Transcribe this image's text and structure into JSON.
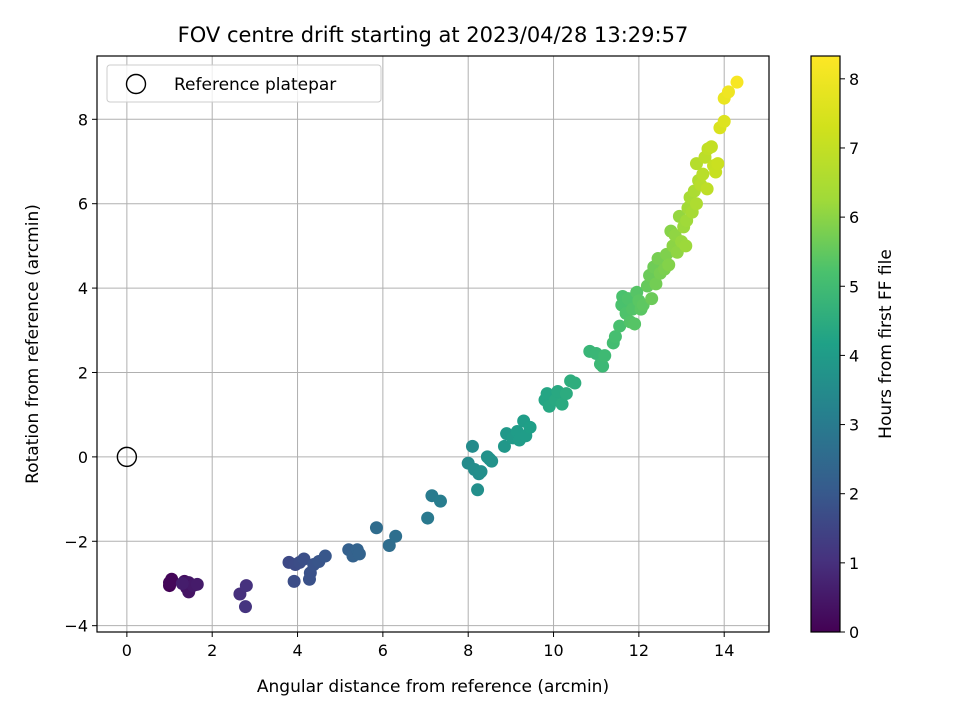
{
  "chart_data": {
    "type": "scatter",
    "title": "FOV centre drift starting at 2023/04/28 13:29:57",
    "xlabel": "Angular distance from reference (arcmin)",
    "ylabel": "Rotation from reference (arcmin)",
    "xlim": [
      -0.7,
      15.05
    ],
    "ylim": [
      -4.15,
      9.5
    ],
    "xticks": [
      0,
      2,
      4,
      6,
      8,
      10,
      12,
      14
    ],
    "yticks": [
      -4,
      -2,
      0,
      2,
      4,
      6,
      8
    ],
    "grid": true,
    "legend": {
      "placement": "top-left",
      "entries": [
        {
          "label": "Reference platepar",
          "marker": "open-circle"
        }
      ]
    },
    "reference_point": {
      "x": 0,
      "y": 0
    },
    "colorbar": {
      "label": "Hours from first FF file",
      "range": [
        0,
        8.33
      ],
      "ticks": [
        0,
        1,
        2,
        3,
        4,
        5,
        6,
        7,
        8
      ],
      "colormap": "viridis"
    },
    "series": [
      {
        "points": [
          [
            1.0,
            -3.05,
            0.05
          ],
          [
            1.05,
            -2.9,
            0.1
          ],
          [
            1.0,
            -2.98,
            0.12
          ],
          [
            1.35,
            -2.95,
            0.3
          ],
          [
            1.4,
            -3.1,
            0.35
          ],
          [
            1.45,
            -3.2,
            0.4
          ],
          [
            1.45,
            -2.98,
            0.45
          ],
          [
            1.55,
            -3.05,
            0.5
          ],
          [
            1.65,
            -3.02,
            0.55
          ],
          [
            1.3,
            -3.0,
            0.6
          ],
          [
            2.65,
            -3.25,
            1.0
          ],
          [
            2.8,
            -3.05,
            1.05
          ],
          [
            2.78,
            -3.55,
            1.1
          ],
          [
            3.8,
            -2.5,
            1.6
          ],
          [
            3.95,
            -2.55,
            1.65
          ],
          [
            4.05,
            -2.5,
            1.7
          ],
          [
            3.92,
            -2.95,
            1.7
          ],
          [
            4.15,
            -2.42,
            1.75
          ],
          [
            4.3,
            -2.75,
            1.8
          ],
          [
            4.28,
            -2.9,
            1.8
          ],
          [
            4.38,
            -2.55,
            1.85
          ],
          [
            4.5,
            -2.48,
            1.9
          ],
          [
            4.65,
            -2.35,
            1.95
          ],
          [
            5.2,
            -2.2,
            2.2
          ],
          [
            5.3,
            -2.35,
            2.25
          ],
          [
            5.4,
            -2.2,
            2.3
          ],
          [
            5.45,
            -2.3,
            2.3
          ],
          [
            5.85,
            -1.68,
            2.55
          ],
          [
            6.15,
            -2.1,
            2.6
          ],
          [
            6.3,
            -1.88,
            2.65
          ],
          [
            7.05,
            -1.45,
            2.95
          ],
          [
            7.15,
            -0.92,
            3.0
          ],
          [
            7.35,
            -1.05,
            3.05
          ],
          [
            8.0,
            -0.15,
            3.5
          ],
          [
            8.1,
            0.25,
            3.5
          ],
          [
            8.15,
            -0.3,
            3.55
          ],
          [
            8.25,
            -0.4,
            3.55
          ],
          [
            8.3,
            -0.35,
            3.6
          ],
          [
            8.22,
            -0.78,
            3.6
          ],
          [
            8.45,
            0.0,
            3.65
          ],
          [
            8.5,
            -0.05,
            3.7
          ],
          [
            8.55,
            -0.1,
            3.7
          ],
          [
            8.85,
            0.25,
            3.85
          ],
          [
            8.9,
            0.55,
            3.9
          ],
          [
            9.05,
            0.45,
            3.95
          ],
          [
            9.15,
            0.6,
            4.0
          ],
          [
            9.2,
            0.4,
            4.0
          ],
          [
            9.3,
            0.85,
            4.05
          ],
          [
            9.35,
            0.5,
            4.05
          ],
          [
            9.45,
            0.7,
            4.1
          ],
          [
            9.8,
            1.35,
            4.3
          ],
          [
            9.85,
            1.5,
            4.3
          ],
          [
            9.9,
            1.2,
            4.35
          ],
          [
            10.05,
            1.35,
            4.4
          ],
          [
            10.1,
            1.55,
            4.4
          ],
          [
            10.2,
            1.25,
            4.45
          ],
          [
            10.3,
            1.5,
            4.5
          ],
          [
            10.4,
            1.8,
            4.55
          ],
          [
            10.5,
            1.75,
            4.55
          ],
          [
            10.85,
            2.5,
            4.8
          ],
          [
            11.0,
            2.45,
            4.85
          ],
          [
            11.1,
            2.2,
            4.9
          ],
          [
            11.15,
            2.15,
            4.9
          ],
          [
            11.2,
            2.4,
            4.95
          ],
          [
            11.4,
            2.7,
            5.05
          ],
          [
            11.45,
            2.85,
            5.1
          ],
          [
            11.55,
            3.1,
            5.15
          ],
          [
            11.6,
            3.6,
            5.2
          ],
          [
            11.62,
            3.8,
            5.2
          ],
          [
            11.7,
            3.4,
            5.25
          ],
          [
            11.75,
            3.75,
            5.25
          ],
          [
            11.8,
            3.2,
            5.3
          ],
          [
            11.85,
            3.5,
            5.3
          ],
          [
            11.9,
            3.15,
            5.35
          ],
          [
            11.95,
            3.9,
            5.35
          ],
          [
            12.0,
            3.7,
            5.4
          ],
          [
            12.05,
            3.5,
            5.4
          ],
          [
            12.1,
            3.6,
            5.45
          ],
          [
            12.2,
            4.05,
            5.55
          ],
          [
            12.25,
            4.3,
            5.6
          ],
          [
            12.3,
            3.75,
            5.6
          ],
          [
            12.35,
            4.5,
            5.65
          ],
          [
            12.4,
            4.1,
            5.7
          ],
          [
            12.45,
            4.7,
            5.75
          ],
          [
            12.5,
            4.35,
            5.75
          ],
          [
            12.6,
            4.45,
            5.8
          ],
          [
            12.65,
            4.8,
            5.85
          ],
          [
            12.7,
            4.55,
            5.9
          ],
          [
            12.75,
            5.35,
            5.95
          ],
          [
            12.8,
            5.0,
            6.0
          ],
          [
            12.85,
            5.25,
            6.05
          ],
          [
            12.9,
            4.85,
            6.05
          ],
          [
            12.95,
            5.7,
            6.1
          ],
          [
            13.0,
            5.1,
            6.15
          ],
          [
            13.05,
            5.45,
            6.2
          ],
          [
            13.1,
            5.0,
            6.2
          ],
          [
            13.12,
            5.6,
            6.25
          ],
          [
            13.15,
            5.9,
            6.3
          ],
          [
            13.2,
            6.15,
            6.4
          ],
          [
            13.25,
            5.8,
            6.4
          ],
          [
            13.3,
            6.3,
            6.5
          ],
          [
            13.35,
            6.0,
            6.55
          ],
          [
            13.4,
            6.55,
            6.6
          ],
          [
            13.35,
            6.95,
            6.7
          ],
          [
            13.45,
            6.45,
            6.75
          ],
          [
            13.5,
            6.7,
            6.8
          ],
          [
            13.55,
            7.1,
            6.85
          ],
          [
            13.6,
            6.35,
            6.9
          ],
          [
            13.62,
            7.3,
            6.95
          ],
          [
            13.7,
            7.35,
            7.0
          ],
          [
            13.75,
            6.9,
            7.05
          ],
          [
            13.8,
            6.75,
            7.1
          ],
          [
            13.85,
            6.95,
            7.15
          ],
          [
            13.9,
            7.8,
            7.5
          ],
          [
            14.0,
            7.95,
            7.6
          ],
          [
            14.0,
            8.5,
            7.9
          ],
          [
            14.1,
            8.65,
            8.0
          ],
          [
            14.3,
            8.88,
            8.2
          ]
        ]
      }
    ]
  }
}
